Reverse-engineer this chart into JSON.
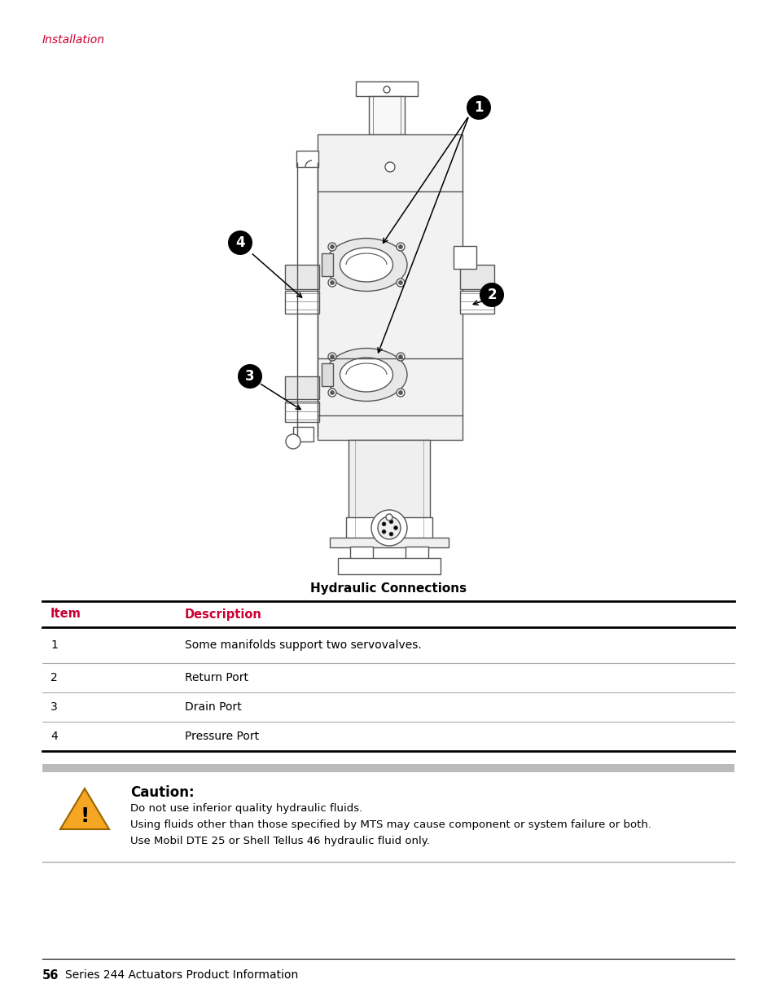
{
  "page_header": "Installation",
  "header_color": "#cc0033",
  "figure_caption": "Hydraulic Connections",
  "table_headers": [
    "Item",
    "Description"
  ],
  "table_header_color": "#cc0033",
  "table_rows": [
    [
      "1",
      "Some manifolds support two servovalves."
    ],
    [
      "2",
      "Return Port"
    ],
    [
      "3",
      "Drain Port"
    ],
    [
      "4",
      "Pressure Port"
    ]
  ],
  "caution_title": "Caution:",
  "caution_lines": [
    "Do not use inferior quality hydraulic fluids.",
    "Using fluids other than those specified by MTS may cause component or system failure or both.",
    "Use Mobil DTE 25 or Shell Tellus 46 hydraulic fluid only."
  ],
  "footer_text": "56   Series 244 Actuators Product Information",
  "bg_color": "#ffffff",
  "text_color": "#000000",
  "line_color": "#555555",
  "gray_line_color": "#aaaaaa",
  "caution_bg": "#cccccc"
}
